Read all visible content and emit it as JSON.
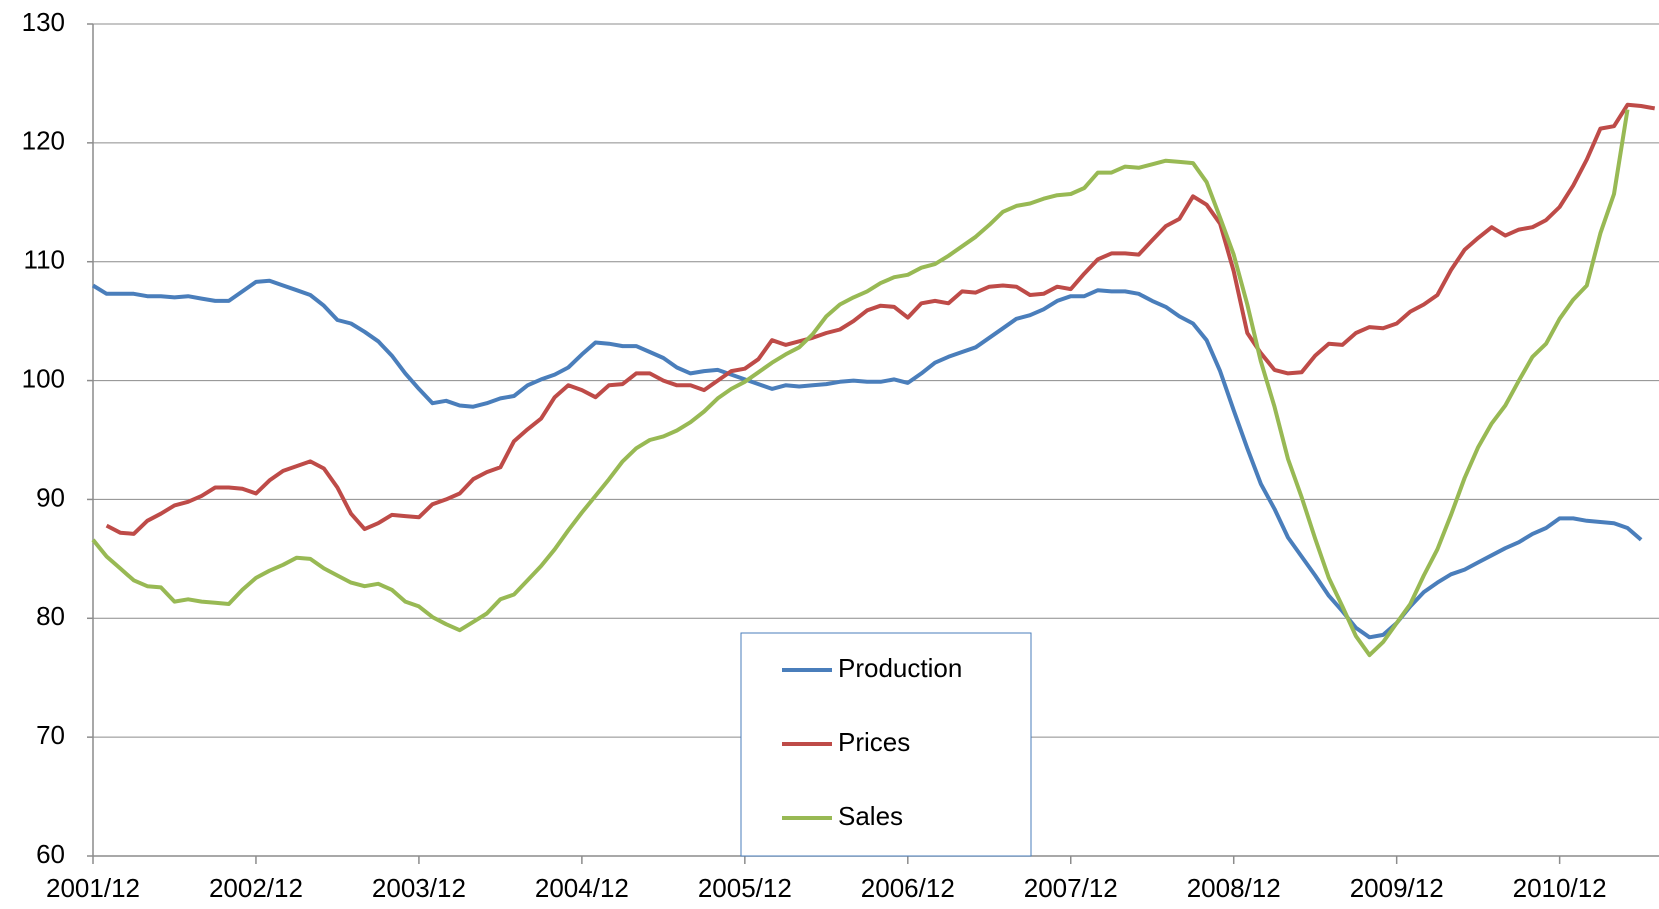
{
  "chart_data": {
    "type": "line",
    "categories": [
      "2001/12",
      null,
      null,
      null,
      null,
      null,
      null,
      null,
      null,
      null,
      null,
      null,
      "2002/12",
      null,
      null,
      null,
      null,
      null,
      null,
      null,
      null,
      null,
      null,
      null,
      "2003/12",
      null,
      null,
      null,
      null,
      null,
      null,
      null,
      null,
      null,
      null,
      null,
      "2004/12",
      null,
      null,
      null,
      null,
      null,
      null,
      null,
      null,
      null,
      null,
      null,
      "2005/12",
      null,
      null,
      null,
      null,
      null,
      null,
      null,
      null,
      null,
      null,
      null,
      "2006/12",
      null,
      null,
      null,
      null,
      null,
      null,
      null,
      null,
      null,
      null,
      null,
      "2007/12",
      null,
      null,
      null,
      null,
      null,
      null,
      null,
      null,
      null,
      null,
      null,
      "2008/12",
      null,
      null,
      null,
      null,
      null,
      null,
      null,
      null,
      null,
      null,
      null,
      "2009/12",
      null,
      null,
      null,
      null,
      null,
      null,
      null,
      null,
      null,
      null,
      null,
      "2010/12",
      null,
      null,
      null,
      null,
      null,
      null,
      null
    ],
    "series": [
      {
        "name": "Production",
        "color": "#4a7ebb",
        "values": [
          108.0,
          107.3,
          107.3,
          107.3,
          107.1,
          107.1,
          107.0,
          107.1,
          106.9,
          106.7,
          106.7,
          107.5,
          108.3,
          108.4,
          108.0,
          107.6,
          107.2,
          106.3,
          105.1,
          104.8,
          104.1,
          103.3,
          102.1,
          100.6,
          99.3,
          98.1,
          98.3,
          97.9,
          97.8,
          98.1,
          98.5,
          98.7,
          99.6,
          100.1,
          100.5,
          101.1,
          102.2,
          103.2,
          103.1,
          102.9,
          102.9,
          102.4,
          101.9,
          101.1,
          100.6,
          100.8,
          100.9,
          100.5,
          100.1,
          99.7,
          99.3,
          99.6,
          99.5,
          99.6,
          99.7,
          99.9,
          100.0,
          99.9,
          99.9,
          100.1,
          99.8,
          100.6,
          101.5,
          102.0,
          102.4,
          102.8,
          103.6,
          104.4,
          105.2,
          105.5,
          106.0,
          106.7,
          107.1,
          107.1,
          107.6,
          107.5,
          107.5,
          107.3,
          106.7,
          106.2,
          105.4,
          104.8,
          103.4,
          100.8,
          97.5,
          94.3,
          91.3,
          89.2,
          86.8,
          85.2,
          83.6,
          81.9,
          80.6,
          79.2,
          78.4,
          78.6,
          79.6,
          81.0,
          82.2,
          83.0,
          83.7,
          84.1,
          84.7,
          85.3,
          85.9,
          86.4,
          87.1,
          87.6,
          88.4,
          88.4,
          88.2,
          88.1,
          88.0,
          87.6,
          86.6,
          null
        ]
      },
      {
        "name": "Prices",
        "color": "#be4b48",
        "values": [
          null,
          87.8,
          87.2,
          87.1,
          88.2,
          88.8,
          89.5,
          89.8,
          90.3,
          91.0,
          91.0,
          90.9,
          90.5,
          91.6,
          92.4,
          92.8,
          93.2,
          92.6,
          91.0,
          88.8,
          87.5,
          88.0,
          88.7,
          88.6,
          88.5,
          89.6,
          90.0,
          90.5,
          91.7,
          92.3,
          92.7,
          94.9,
          95.9,
          96.8,
          98.6,
          99.6,
          99.2,
          98.6,
          99.6,
          99.7,
          100.6,
          100.6,
          100.0,
          99.6,
          99.6,
          99.2,
          100.0,
          100.8,
          101.0,
          101.8,
          103.4,
          103.0,
          103.3,
          103.6,
          104.0,
          104.3,
          105.0,
          105.9,
          106.3,
          106.2,
          105.3,
          106.5,
          106.7,
          106.5,
          107.5,
          107.4,
          107.9,
          108.0,
          107.9,
          107.2,
          107.3,
          107.9,
          107.7,
          109.0,
          110.2,
          110.7,
          110.7,
          110.6,
          111.8,
          113.0,
          113.6,
          115.5,
          114.8,
          113.2,
          109.2,
          104.0,
          102.3,
          100.9,
          100.6,
          100.7,
          102.1,
          103.1,
          103.0,
          104.0,
          104.5,
          104.4,
          104.8,
          105.8,
          106.4,
          107.2,
          109.3,
          111.0,
          112.0,
          112.9,
          112.2,
          112.7,
          112.9,
          113.5,
          114.6,
          116.4,
          118.6,
          121.2,
          121.4,
          123.2,
          123.1,
          122.9
        ]
      },
      {
        "name": "Sales",
        "color": "#98b954",
        "values": [
          86.6,
          85.2,
          84.2,
          83.2,
          82.7,
          82.6,
          81.4,
          81.6,
          81.4,
          81.3,
          81.2,
          82.4,
          83.4,
          84.0,
          84.5,
          85.1,
          85.0,
          84.2,
          83.6,
          83.0,
          82.7,
          82.9,
          82.4,
          81.4,
          81.0,
          80.1,
          79.5,
          79.0,
          79.7,
          80.4,
          81.6,
          82.0,
          83.2,
          84.4,
          85.8,
          87.4,
          88.9,
          90.3,
          91.7,
          93.2,
          94.3,
          95.0,
          95.3,
          95.8,
          96.5,
          97.4,
          98.5,
          99.3,
          99.9,
          100.7,
          101.5,
          102.2,
          102.8,
          103.9,
          105.4,
          106.4,
          107.0,
          107.5,
          108.2,
          108.7,
          108.9,
          109.5,
          109.8,
          110.5,
          111.3,
          112.1,
          113.1,
          114.2,
          114.7,
          114.9,
          115.3,
          115.6,
          115.7,
          116.2,
          117.5,
          117.5,
          118.0,
          117.9,
          118.2,
          118.5,
          118.4,
          118.3,
          116.7,
          113.7,
          110.6,
          106.4,
          101.6,
          97.8,
          93.4,
          90.2,
          86.7,
          83.4,
          81.0,
          78.5,
          76.9,
          78.0,
          79.6,
          81.2,
          83.6,
          85.8,
          88.7,
          91.8,
          94.4,
          96.4,
          97.9,
          100.0,
          102.0,
          103.1,
          105.2,
          106.8,
          108.0,
          112.4,
          115.7,
          122.8,
          null,
          null
        ]
      }
    ],
    "ylim": [
      60,
      130
    ],
    "yticks": [
      60,
      70,
      80,
      90,
      100,
      110,
      120,
      130
    ],
    "grid": true
  }
}
